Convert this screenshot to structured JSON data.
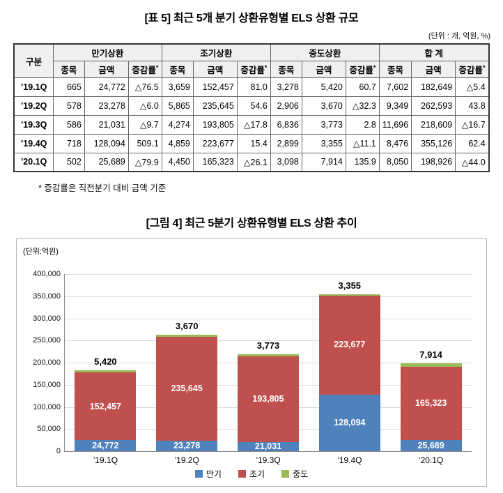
{
  "table": {
    "title": "[표 5] 최근 5개 분기 상환유형별 ELS 상환 규모",
    "unit_note": "(단위 : 개, 억원, %)",
    "col_group_header": "구분",
    "groups": [
      "만기상환",
      "조기상환",
      "중도상환",
      "합 계"
    ],
    "sub_headers": [
      "종목",
      "금액",
      "증감률*"
    ],
    "rows": [
      {
        "label": "’19.1Q",
        "cells": [
          "665",
          "24,772",
          "△76.5",
          "3,659",
          "152,457",
          "81.0",
          "3,278",
          "5,420",
          "60.7",
          "7,602",
          "182,649",
          "△5.4"
        ]
      },
      {
        "label": "’19.2Q",
        "cells": [
          "578",
          "23,278",
          "△6.0",
          "5,865",
          "235,645",
          "54.6",
          "2,906",
          "3,670",
          "△32.3",
          "9,349",
          "262,593",
          "43.8"
        ]
      },
      {
        "label": "’19.3Q",
        "cells": [
          "586",
          "21,031",
          "△9.7",
          "4,274",
          "193,805",
          "△17.8",
          "6,836",
          "3,773",
          "2.8",
          "11,696",
          "218,609",
          "△16.7"
        ]
      },
      {
        "label": "’19.4Q",
        "cells": [
          "718",
          "128,094",
          "509.1",
          "4,859",
          "223,677",
          "15.4",
          "2,899",
          "3,355",
          "△11.1",
          "8,476",
          "355,126",
          "62.4"
        ]
      },
      {
        "label": "’20.1Q",
        "cells": [
          "502",
          "25,689",
          "△79.9",
          "4,450",
          "165,323",
          "△26.1",
          "3,098",
          "7,914",
          "135.9",
          "8,050",
          "198,926",
          "△44.0"
        ]
      }
    ],
    "footnote": "* 증감률은 직전분기 대비 금액 기준"
  },
  "chart": {
    "title": "[그림 4] 최근 5분기 상환유형별 ELS 상환 추이",
    "unit_label": "(단위:억원)"
  },
  "chart_data": {
    "type": "bar",
    "stacked": true,
    "title": "[그림 4] 최근 5분기 상환유형별 ELS 상환 추이",
    "categories": [
      "’19.1Q",
      "’19.2Q",
      "’19.3Q",
      "’19.4Q",
      "’20.1Q"
    ],
    "series": [
      {
        "name": "만기",
        "color": "#4f81bd",
        "values": [
          24772,
          23278,
          21031,
          128094,
          25689
        ],
        "label_inside": true
      },
      {
        "name": "조기",
        "color": "#c0504d",
        "values": [
          152457,
          235645,
          193805,
          223677,
          165323
        ],
        "label_inside": true
      },
      {
        "name": "중도",
        "color": "#9bbb59",
        "values": [
          5420,
          3670,
          3773,
          3355,
          7914
        ],
        "label_above": true
      }
    ],
    "xlabel": "",
    "ylabel": "(단위:억원)",
    "ylim": [
      0,
      400000
    ],
    "ytick_step": 50000,
    "grid": true,
    "legend_position": "bottom"
  }
}
